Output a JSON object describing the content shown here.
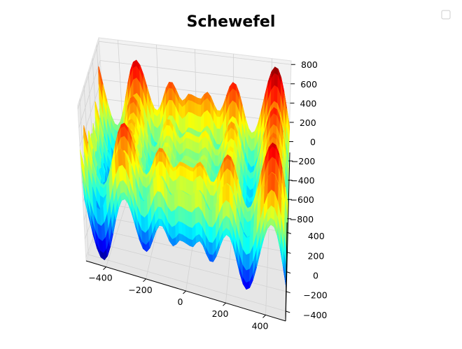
{
  "chart_data": {
    "type": "surface3d",
    "title": "Schewefel",
    "function": "schwefel",
    "colormap": "jet",
    "x_range": [
      -500,
      500
    ],
    "y_range": [
      -500,
      500
    ],
    "z_range": [
      -837.9658,
      837.9658
    ],
    "x_ticks": [
      "−400",
      "−200",
      "0",
      "200",
      "400"
    ],
    "y_ticks": [
      "−400",
      "−200",
      "0",
      "200",
      "400"
    ],
    "z_ticks": [
      "−800",
      "−600",
      "−400",
      "−200",
      "0",
      "200",
      "400",
      "600",
      "800"
    ],
    "x_tick_values": [
      -400,
      -200,
      0,
      200,
      400
    ],
    "y_tick_values": [
      -400,
      -200,
      0,
      200,
      400
    ],
    "z_tick_values": [
      -800,
      -600,
      -400,
      -200,
      0,
      200,
      400,
      600,
      800
    ],
    "grid": true,
    "legend": "top-right (empty)"
  }
}
